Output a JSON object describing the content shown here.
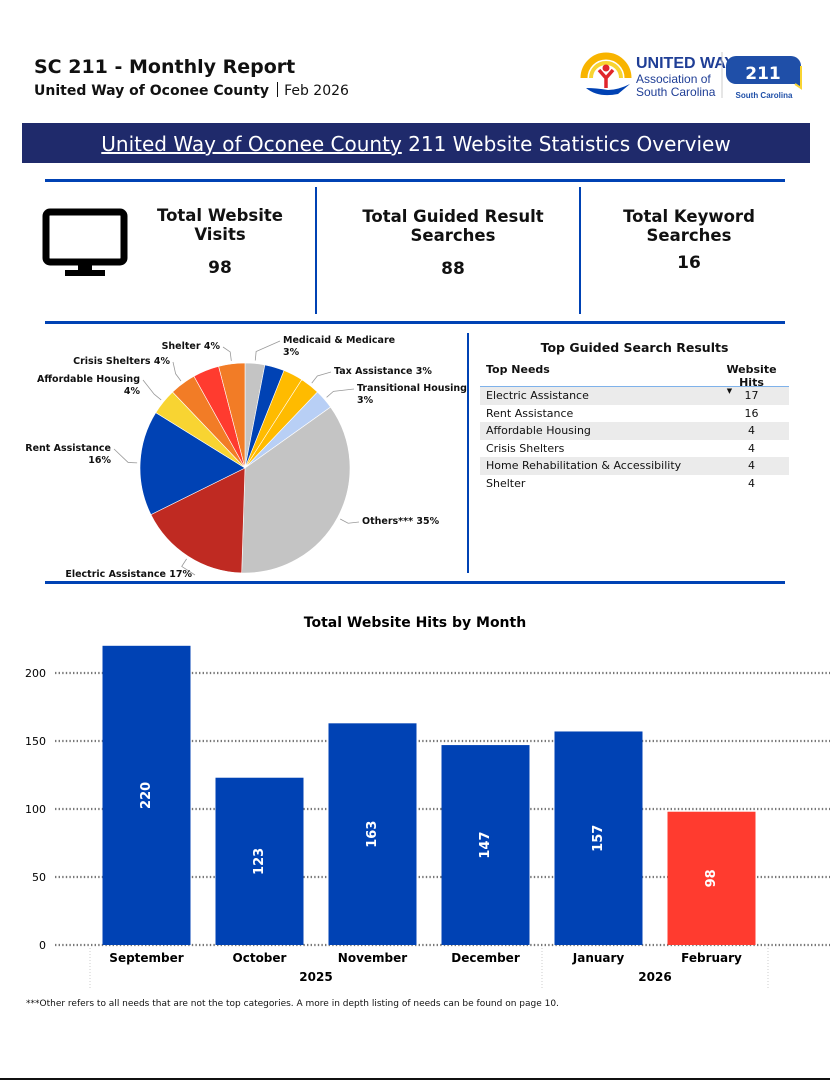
{
  "header": {
    "title": "SC 211 - Monthly Report",
    "org": "United Way of Oconee County",
    "period": "Feb 2026",
    "logo_text": [
      "UNITED WAY",
      "Association of",
      "South Carolina",
      "211",
      "South Carolina"
    ]
  },
  "banner": {
    "org": "United Way of Oconee County",
    "rest": " 211 Website Statistics Overview"
  },
  "kpis": [
    {
      "label": "Total Website Visits",
      "value": "98",
      "icon": "monitor-icon"
    },
    {
      "label": "Total Guided Result Searches",
      "value": "88"
    },
    {
      "label": "Total Keyword Searches",
      "value": "16"
    }
  ],
  "colors": {
    "banner": "#1f2a6b",
    "accent": "#0042b4",
    "bar": "#0042b4",
    "bar_highlight": "#ff3b2f"
  },
  "pie_chart": {
    "type": "pie",
    "slices": [
      {
        "label": "Medicaid & Medicare",
        "pct": "3%",
        "value": 3,
        "color": "#c4c4c4"
      },
      {
        "label": "",
        "pct": "",
        "value": 3,
        "color": "#0042b4"
      },
      {
        "label": "",
        "pct": "",
        "value": 3,
        "color": "#ffbb00"
      },
      {
        "label": "Tax Assistance",
        "pct": "3%",
        "value": 3,
        "color": "#ffbb00"
      },
      {
        "label": "Transitional Housing",
        "pct": "3%",
        "value": 3,
        "color": "#b8cff5"
      },
      {
        "label": "Others***",
        "pct": "35%",
        "value": 35,
        "color": "#c4c4c4"
      },
      {
        "label": "Electric Assistance",
        "pct": "17%",
        "value": 17,
        "color": "#bf2a22"
      },
      {
        "label": "Rent Assistance",
        "pct": "16%",
        "value": 16,
        "color": "#0042b4"
      },
      {
        "label": "Affordable Housing",
        "pct": "4%",
        "value": 4,
        "color": "#f8d432"
      },
      {
        "label": "Crisis Shelters",
        "pct": "4%",
        "value": 4,
        "color": "#f27c26"
      },
      {
        "label": "",
        "pct": "",
        "value": 4,
        "color": "#ff3b2f"
      },
      {
        "label": "Shelter",
        "pct": "4%",
        "value": 4,
        "color": "#f27c26"
      }
    ]
  },
  "table": {
    "title": "Top Guided Search Results",
    "headers": [
      "Top Needs",
      "Website Hits"
    ],
    "rows": [
      [
        "Electric Assistance",
        "17"
      ],
      [
        "Rent Assistance",
        "16"
      ],
      [
        "Affordable Housing",
        "4"
      ],
      [
        "Crisis Shelters",
        "4"
      ],
      [
        "Home Rehabilitation & Accessibility",
        "4"
      ],
      [
        "Shelter",
        "4"
      ]
    ]
  },
  "chart_data": {
    "type": "bar",
    "title": "Total Website Hits by Month",
    "categories": [
      "September",
      "October",
      "November",
      "December",
      "January",
      "February"
    ],
    "years": [
      {
        "label": "2025",
        "months": 4
      },
      {
        "label": "2026",
        "months": 2
      }
    ],
    "values": [
      220,
      123,
      163,
      147,
      157,
      98
    ],
    "ylim": [
      0,
      220
    ],
    "yticks": [
      0,
      50,
      100,
      150,
      200
    ],
    "grid": true,
    "highlight": "February"
  },
  "footnote": "***Other refers to all needs that are not the top categories. A more in depth listing of needs can be found on page 10."
}
